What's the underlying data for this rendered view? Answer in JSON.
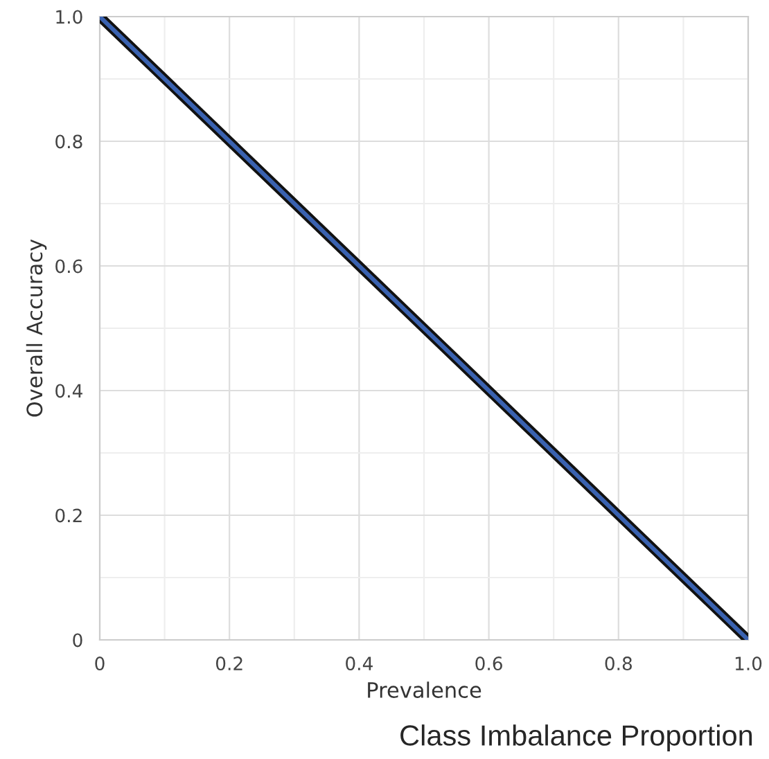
{
  "chart_data": {
    "type": "line",
    "xlabel": "Prevalence",
    "ylabel": "Overall Accuracy",
    "annotations": [
      "Class Imbalance Proportion"
    ],
    "x": [
      0,
      1
    ],
    "series": [
      {
        "color": "#3a62b0",
        "values": [
          1,
          0
        ]
      }
    ],
    "xlim": [
      0,
      1
    ],
    "ylim": [
      0,
      1
    ],
    "xticks": [
      0,
      0.2,
      0.4,
      0.6,
      0.8,
      {
        "value": 1,
        "label": "1.0"
      }
    ],
    "yticks": [
      0,
      0.2,
      0.4,
      0.6,
      0.8,
      {
        "value": 1,
        "label": "1.0"
      }
    ],
    "grid": true
  }
}
